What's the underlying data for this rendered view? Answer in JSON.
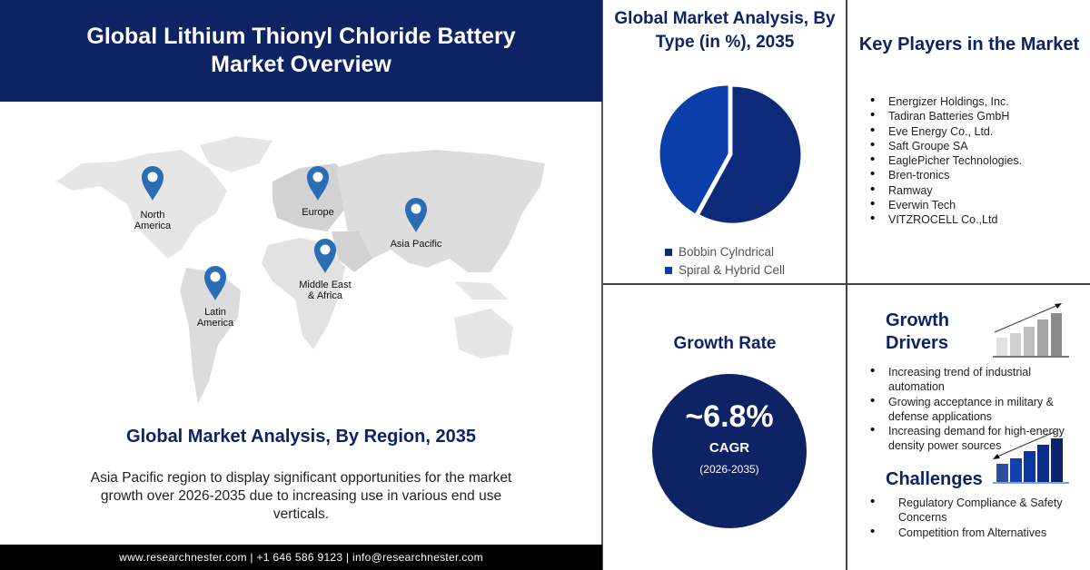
{
  "header": {
    "title": "Global Lithium Thionyl Chloride Battery Market Overview"
  },
  "map": {
    "regions": [
      "North America",
      "Europe",
      "Asia Pacific",
      "Middle East & Africa",
      "Latin America"
    ],
    "pin_color": "#2a6db5"
  },
  "region_section": {
    "title": "Global Market Analysis, By Region, 2035",
    "description": "Asia Pacific region to display significant opportunities for the market growth over 2026-2035 due to increasing use in various end use verticals."
  },
  "footer": {
    "text": "www.researchnester.com | +1 646 586 9123 | info@researchnester.com"
  },
  "chart_data": {
    "type": "pie",
    "title": "Global Market Analysis, By Type (in %), 2035",
    "categories": [
      "Bobbin Cylndrical",
      "Spiral & Hybrid Cell"
    ],
    "values": [
      58,
      42
    ],
    "colors": [
      "#0d2a7a",
      "#0a3ea8"
    ],
    "legend": "bottom"
  },
  "key_players": {
    "title": "Key Players in the Market",
    "items": [
      "Energizer Holdings, Inc.",
      "Tadiran Batteries GmbH",
      "Eve Energy Co., Ltd.",
      "Saft Groupe SA",
      "EaglePicher Technologies.",
      "Bren-tronics",
      "Ramway",
      "Everwin Tech",
      "VITZROCELL Co.,Ltd"
    ]
  },
  "growth_rate": {
    "title": "Growth Rate",
    "value": "~6.8%",
    "label": "CAGR",
    "period": "(2026-2035)"
  },
  "drivers": {
    "title": "Growth Drivers",
    "items": [
      "Increasing trend of industrial automation",
      "Growing acceptance in military & defense applications",
      "Increasing demand for high-energy density power sources"
    ]
  },
  "challenges": {
    "title": "Challenges",
    "items": [
      "Regulatory Compliance & Safety Concerns",
      "Competition from Alternatives"
    ]
  }
}
